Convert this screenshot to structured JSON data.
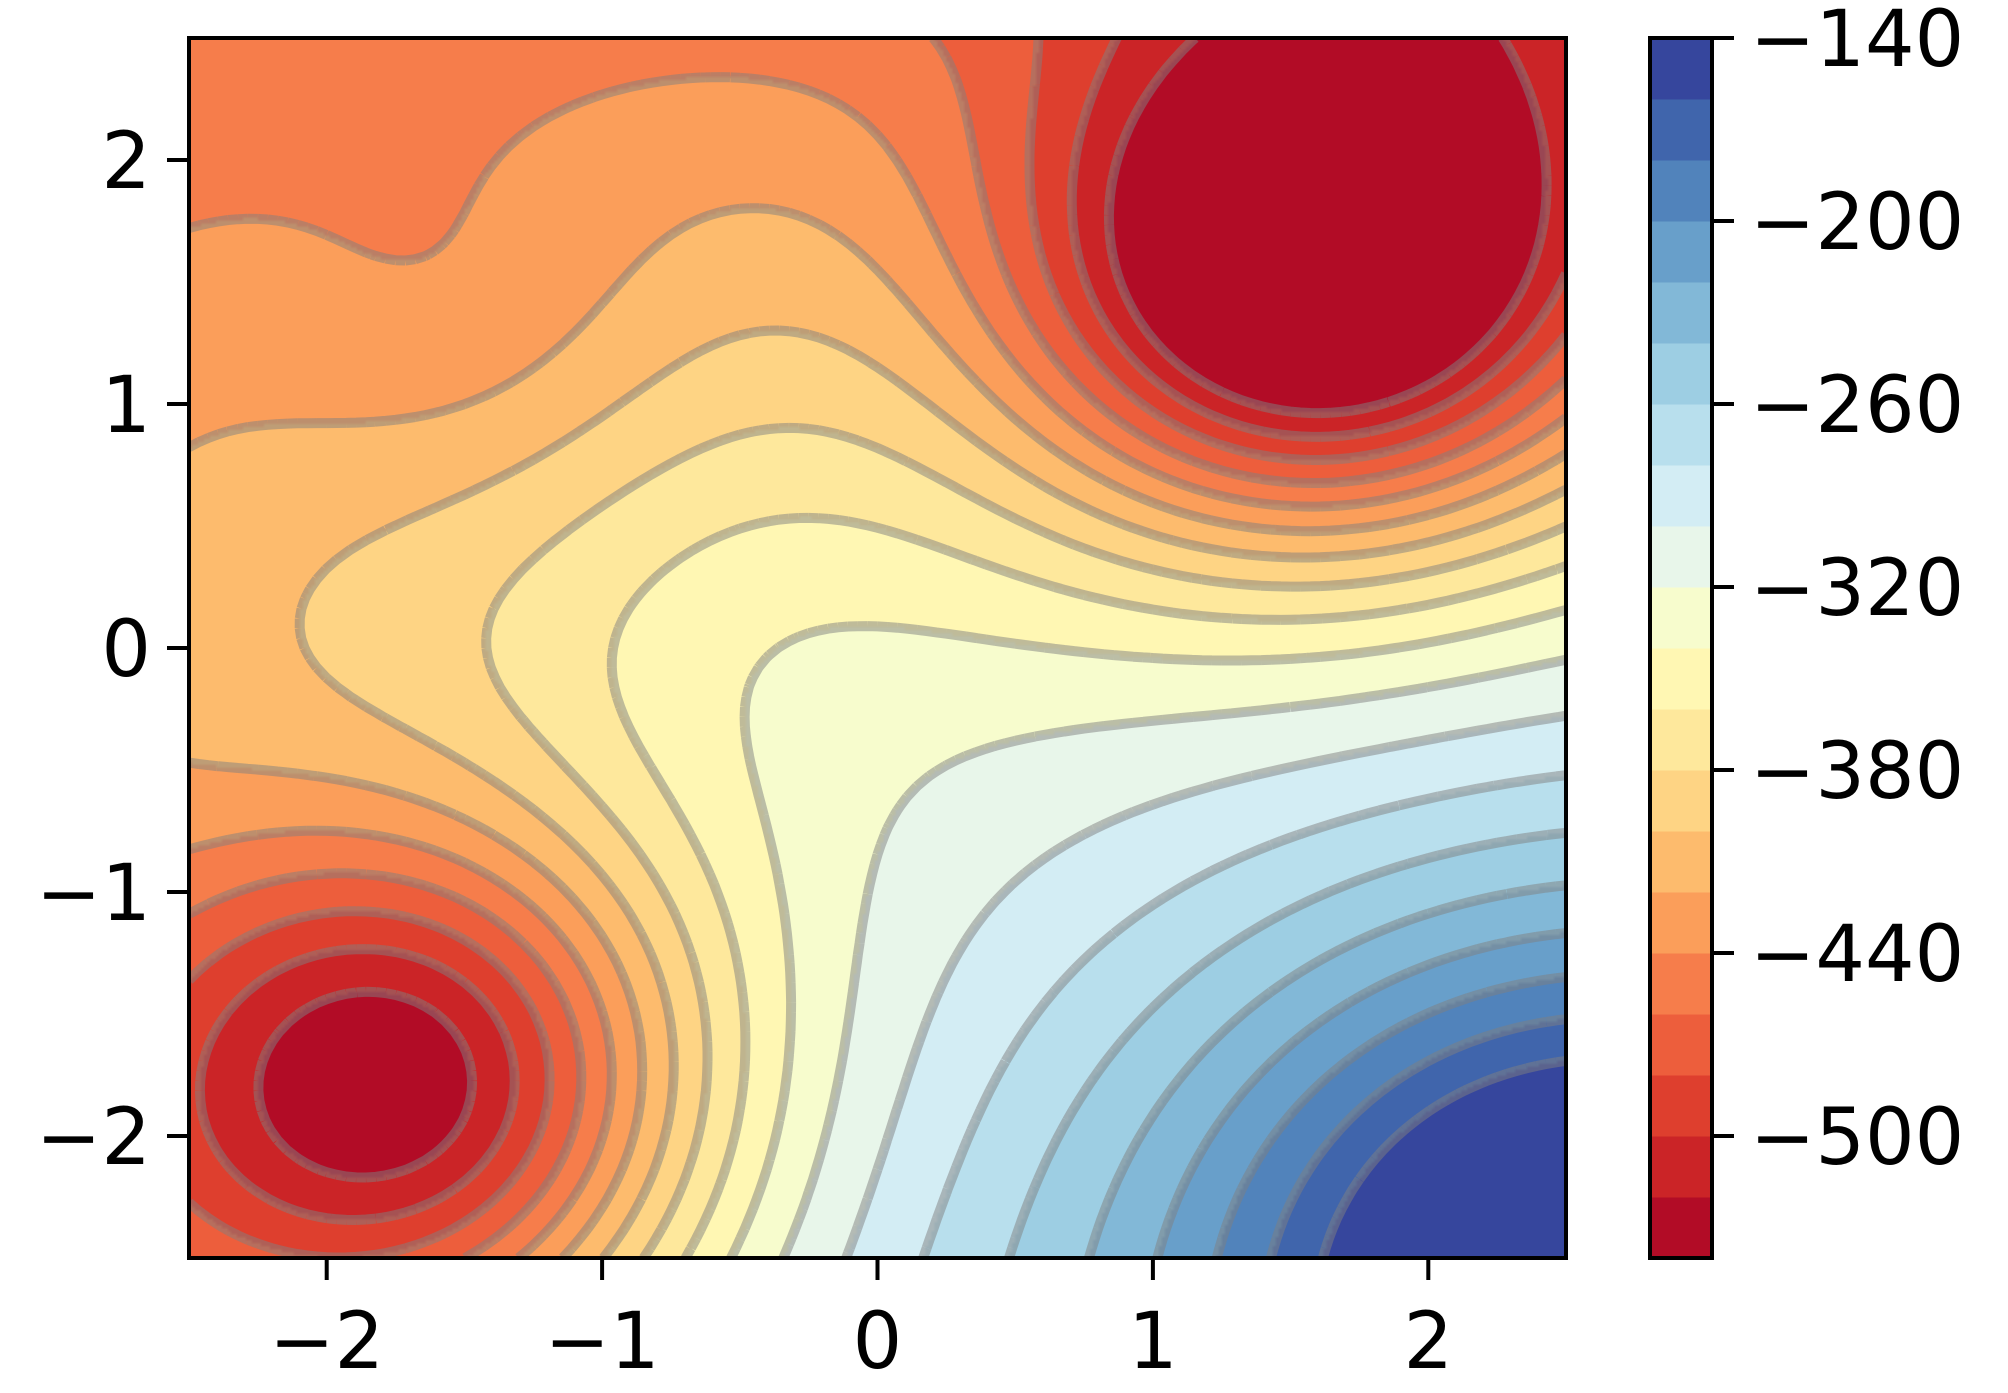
{
  "chart_data": {
    "type": "contour",
    "title": "",
    "xlabel": "",
    "ylabel": "",
    "xlim": [
      -2.5,
      2.5
    ],
    "ylim": [
      -2.5,
      2.5
    ],
    "x_ticks": [
      {
        "value": -2,
        "label": "−2"
      },
      {
        "value": -1,
        "label": "−1"
      },
      {
        "value": 0,
        "label": "0"
      },
      {
        "value": 1,
        "label": "1"
      },
      {
        "value": 2,
        "label": "2"
      }
    ],
    "y_ticks": [
      {
        "value": 2,
        "label": "2"
      },
      {
        "value": 1,
        "label": "1"
      },
      {
        "value": 0,
        "label": "0"
      },
      {
        "value": -1,
        "label": "−1"
      },
      {
        "value": -2,
        "label": "−2"
      }
    ],
    "colorbar": {
      "range": [
        -540,
        -140
      ],
      "level_step": 20,
      "colormap": "RdYlBu",
      "ticks": [
        {
          "value": -140,
          "label": "−140"
        },
        {
          "value": -200,
          "label": "−200"
        },
        {
          "value": -260,
          "label": "−260"
        },
        {
          "value": -320,
          "label": "−320"
        },
        {
          "value": -380,
          "label": "−380"
        },
        {
          "value": -440,
          "label": "−440"
        },
        {
          "value": -500,
          "label": "−500"
        }
      ]
    },
    "features": [
      {
        "kind": "minimum",
        "x": 1.6,
        "y": 1.5,
        "approx_value": -530
      },
      {
        "kind": "minimum",
        "x": -1.7,
        "y": -1.8,
        "approx_value": -510
      },
      {
        "kind": "local_min",
        "x": -1.5,
        "y": 1.3,
        "approx_value": -365
      },
      {
        "kind": "local_max",
        "x": -0.5,
        "y": 0.1,
        "approx_value": -330
      },
      {
        "kind": "maximum",
        "x": 2.5,
        "y": -2.5,
        "approx_value": -140
      }
    ],
    "contour_style": {
      "line": "dashed",
      "line_color": "#7f7f7f",
      "alpha": 0.5
    },
    "grid": false,
    "legend": "none"
  }
}
